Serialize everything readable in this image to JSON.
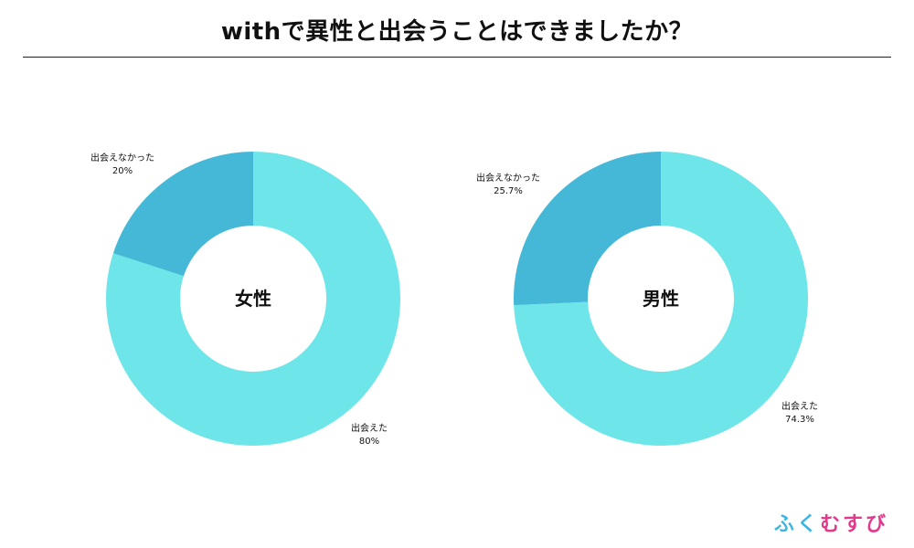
{
  "title": "withで異性と出会うことはできましたか？",
  "colors": {
    "met": "#6ee5e8",
    "not_met": "#44b8d6",
    "logo": [
      "#3eb6e3",
      "#3eb6e3",
      "#e2398c",
      "#e2398c",
      "#e2398c"
    ]
  },
  "logo": {
    "chars": [
      "ふ",
      "く",
      "む",
      "す",
      "び"
    ]
  },
  "chart_data": [
    {
      "type": "pie",
      "donut": true,
      "center_label": "女性",
      "slices": [
        {
          "label": "出会えた",
          "value": 80,
          "value_label": "80%"
        },
        {
          "label": "出会えなかった",
          "value": 20,
          "value_label": "20%"
        }
      ]
    },
    {
      "type": "pie",
      "donut": true,
      "center_label": "男性",
      "slices": [
        {
          "label": "出会えた",
          "value": 74.3,
          "value_label": "74.3%"
        },
        {
          "label": "出会えなかった",
          "value": 25.7,
          "value_label": "25.7%"
        }
      ]
    }
  ]
}
